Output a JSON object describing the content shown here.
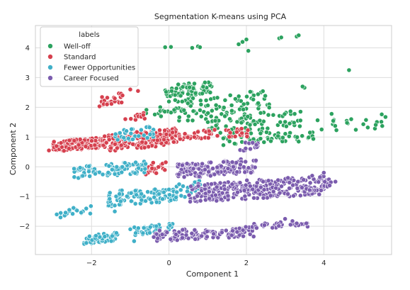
{
  "chart_data": {
    "type": "scatter",
    "title": "Segmentation K-means using PCA",
    "xlabel": "Component 1",
    "ylabel": "Component 2",
    "xlim": [
      -3.45,
      5.75
    ],
    "ylim": [
      -2.95,
      4.75
    ],
    "x_ticks": [
      -2,
      0,
      2,
      4
    ],
    "y_ticks": [
      -2,
      -1,
      0,
      1,
      2,
      3,
      4
    ],
    "grid": true,
    "legend": {
      "title": "labels",
      "placement": "top-left"
    },
    "series": [
      {
        "name": "Well-off",
        "color": "#2ca25f",
        "bands": [
          {
            "x0": -0.2,
            "x1": 1.1,
            "y0": 2.3,
            "y1": 2.9,
            "n": 70
          },
          {
            "x0": 0.2,
            "x1": 2.6,
            "y0": 1.5,
            "y1": 2.6,
            "n": 90
          },
          {
            "x0": 1.0,
            "x1": 3.4,
            "y0": 1.1,
            "y1": 1.9,
            "n": 70
          },
          {
            "x0": 1.4,
            "x1": 3.8,
            "y0": 0.7,
            "y1": 1.3,
            "n": 60
          },
          {
            "x0": 3.8,
            "x1": 5.6,
            "y0": 1.1,
            "y1": 1.8,
            "n": 22
          },
          {
            "x0": -0.6,
            "x1": 0.4,
            "y0": 1.6,
            "y1": 2.3,
            "n": 20
          }
        ],
        "points": [
          [
            -0.1,
            4.02
          ],
          [
            0.05,
            4.03
          ],
          [
            0.6,
            4.0
          ],
          [
            0.75,
            4.05
          ],
          [
            0.8,
            4.02
          ],
          [
            1.8,
            4.12
          ],
          [
            1.9,
            4.2
          ],
          [
            2.0,
            4.28
          ],
          [
            2.05,
            3.9
          ],
          [
            2.85,
            4.32
          ],
          [
            2.9,
            4.35
          ],
          [
            3.3,
            4.38
          ],
          [
            3.35,
            4.42
          ],
          [
            4.65,
            3.25
          ],
          [
            4.2,
            1.78
          ],
          [
            4.6,
            1.48
          ],
          [
            3.5,
            2.66
          ],
          [
            3.45,
            2.7
          ]
        ]
      },
      {
        "name": "Standard",
        "color": "#d6404e",
        "bands": [
          {
            "x0": -3.0,
            "x1": -1.7,
            "y0": 0.5,
            "y1": 1.0,
            "n": 150
          },
          {
            "x0": -1.7,
            "x1": 0.2,
            "y0": 0.5,
            "y1": 1.3,
            "n": 190
          },
          {
            "x0": 0.0,
            "x1": 2.1,
            "y0": 0.9,
            "y1": 1.3,
            "n": 50
          },
          {
            "x0": -1.8,
            "x1": -1.2,
            "y0": 2.0,
            "y1": 2.5,
            "n": 22
          },
          {
            "x0": -0.6,
            "x1": 0.0,
            "y0": -0.3,
            "y1": 0.3,
            "n": 22
          },
          {
            "x0": -1.2,
            "x1": -0.6,
            "y0": 1.5,
            "y1": 1.9,
            "n": 12
          }
        ],
        "points": [
          [
            -1.0,
            2.6
          ],
          [
            -0.8,
            2.55
          ],
          [
            -1.2,
            2.4
          ],
          [
            -1.6,
            2.1
          ],
          [
            -1.4,
            2.3
          ],
          [
            -3.1,
            0.55
          ]
        ]
      },
      {
        "name": "Fewer Opportunities",
        "color": "#40b0c8",
        "bands": [
          {
            "x0": -2.5,
            "x1": -0.6,
            "y0": -0.4,
            "y1": 0.2,
            "n": 90
          },
          {
            "x0": -1.6,
            "x1": 0.2,
            "y0": -1.4,
            "y1": -0.6,
            "n": 100
          },
          {
            "x0": -2.2,
            "x1": -1.3,
            "y0": -2.6,
            "y1": -2.2,
            "n": 60
          },
          {
            "x0": -0.9,
            "x1": 0.1,
            "y0": -2.3,
            "y1": -1.9,
            "n": 40
          },
          {
            "x0": -1.4,
            "x1": -0.4,
            "y0": 0.8,
            "y1": 1.4,
            "n": 35
          },
          {
            "x0": 0.0,
            "x1": 1.0,
            "y0": -1.1,
            "y1": -0.4,
            "n": 25
          },
          {
            "x0": -2.8,
            "x1": -2.0,
            "y0": -1.7,
            "y1": -1.3,
            "n": 18
          }
        ],
        "points": [
          [
            -2.9,
            -1.6
          ],
          [
            -2.8,
            -1.7
          ],
          [
            -1.4,
            -1.5
          ],
          [
            -1.0,
            -2.1
          ],
          [
            -0.9,
            -2.5
          ],
          [
            -1.4,
            -1.3
          ]
        ]
      },
      {
        "name": "Career Focused",
        "color": "#7b5cae",
        "bands": [
          {
            "x0": 0.2,
            "x1": 2.3,
            "y0": -0.4,
            "y1": 0.3,
            "n": 150
          },
          {
            "x0": 0.5,
            "x1": 4.0,
            "y0": -1.2,
            "y1": -0.3,
            "n": 260
          },
          {
            "x0": -0.4,
            "x1": 2.2,
            "y0": -2.5,
            "y1": -2.0,
            "n": 120
          },
          {
            "x0": 1.9,
            "x1": 3.6,
            "y0": -2.1,
            "y1": -1.8,
            "n": 30
          },
          {
            "x0": 3.4,
            "x1": 4.2,
            "y0": -0.9,
            "y1": -0.4,
            "n": 20
          },
          {
            "x0": 1.8,
            "x1": 2.3,
            "y0": 0.5,
            "y1": 0.9,
            "n": 15
          }
        ],
        "points": [
          [
            4.3,
            -0.5
          ],
          [
            4.0,
            -0.2
          ],
          [
            3.9,
            -0.35
          ],
          [
            3.7,
            -0.3
          ],
          [
            3.0,
            -1.75
          ],
          [
            3.55,
            -1.9
          ],
          [
            3.3,
            -1.9
          ]
        ]
      }
    ]
  }
}
